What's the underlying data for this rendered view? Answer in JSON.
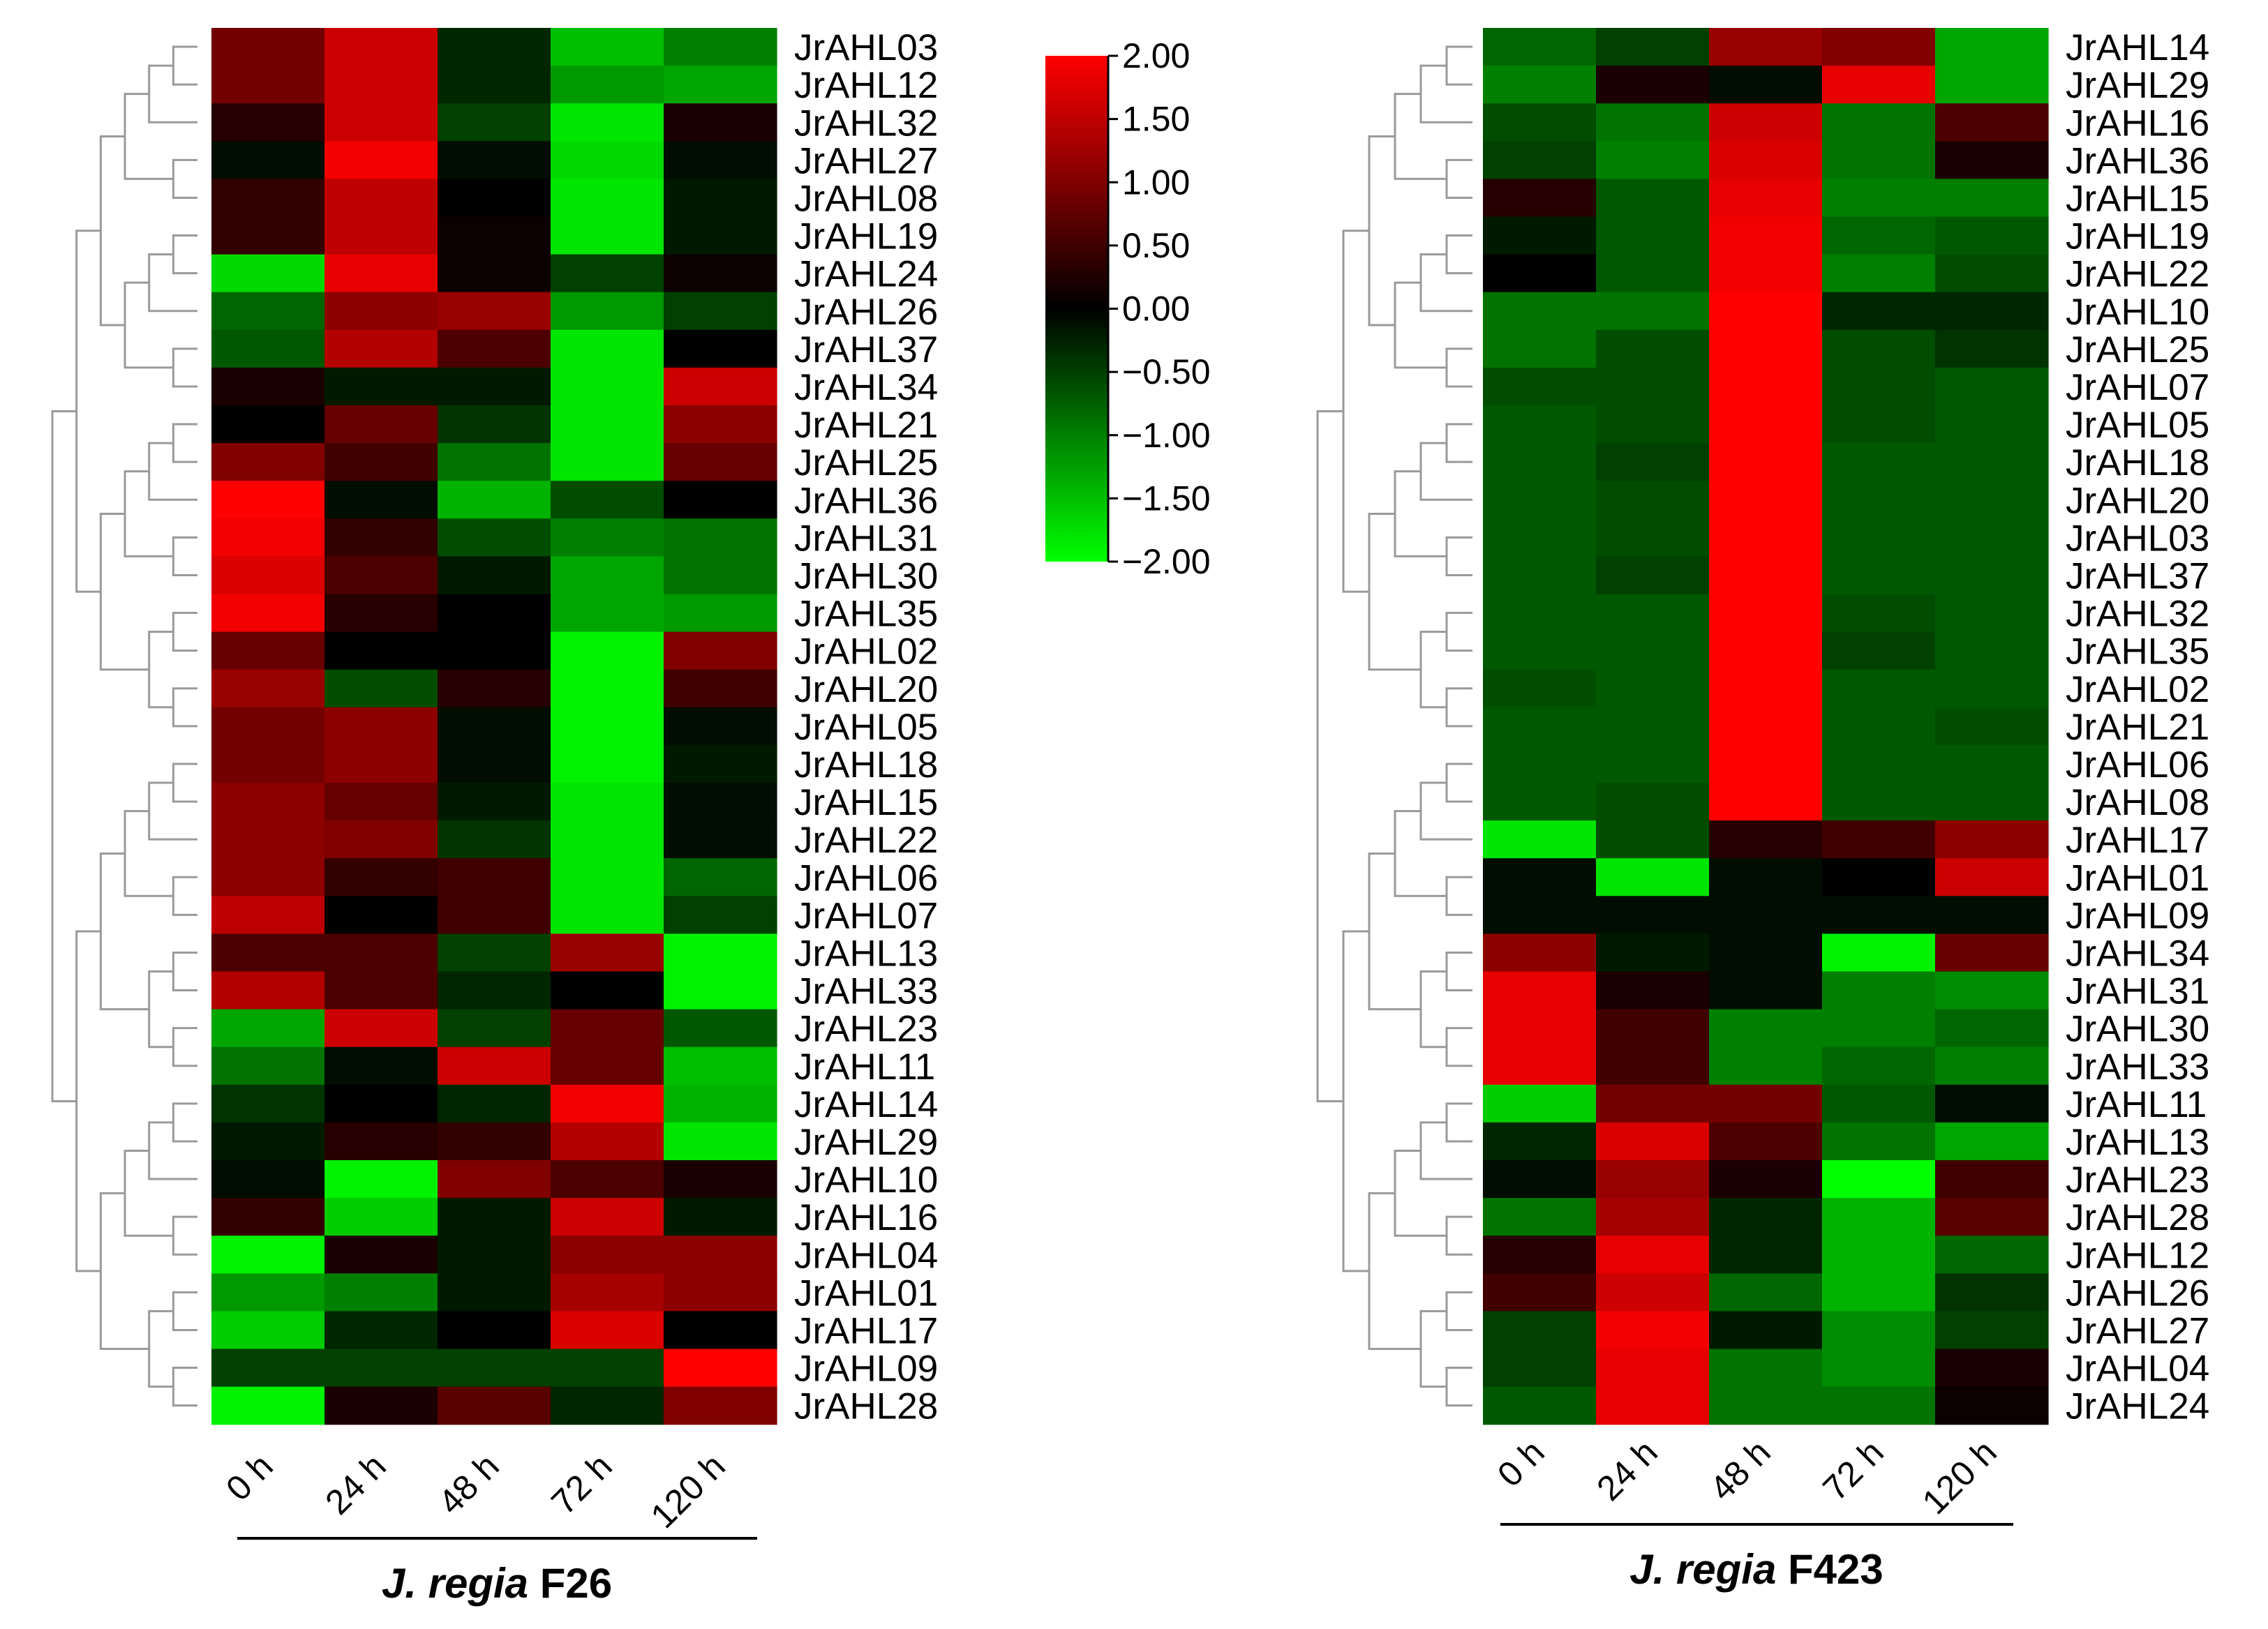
{
  "chart_data": [
    {
      "type": "heatmap",
      "title_italic": "J. regia",
      "title_rest": " F26",
      "columns": [
        "0 h",
        "24 h",
        "48 h",
        "72 h",
        "120 h"
      ],
      "rows": [
        "JrAHL03",
        "JrAHL12",
        "JrAHL32",
        "JrAHL27",
        "JrAHL08",
        "JrAHL19",
        "JrAHL24",
        "JrAHL26",
        "JrAHL37",
        "JrAHL34",
        "JrAHL21",
        "JrAHL25",
        "JrAHL36",
        "JrAHL31",
        "JrAHL30",
        "JrAHL35",
        "JrAHL02",
        "JrAHL20",
        "JrAHL05",
        "JrAHL18",
        "JrAHL15",
        "JrAHL22",
        "JrAHL06",
        "JrAHL07",
        "JrAHL13",
        "JrAHL33",
        "JrAHL23",
        "JrAHL11",
        "JrAHL14",
        "JrAHL29",
        "JrAHL10",
        "JrAHL16",
        "JrAHL04",
        "JrAHL01",
        "JrAHL17",
        "JrAHL09",
        "JrAHL28"
      ],
      "values": [
        [
          0.9,
          1.6,
          -0.3,
          -1.5,
          -1.0
        ],
        [
          0.9,
          1.6,
          -0.3,
          -1.2,
          -1.3
        ],
        [
          0.3,
          1.6,
          -0.5,
          -1.8,
          0.2
        ],
        [
          -0.1,
          1.9,
          -0.1,
          -1.7,
          -0.1
        ],
        [
          0.4,
          1.5,
          0.0,
          -1.8,
          -0.2
        ],
        [
          0.4,
          1.5,
          0.1,
          -1.8,
          -0.2
        ],
        [
          -1.7,
          1.8,
          0.1,
          -0.5,
          0.1
        ],
        [
          -0.8,
          1.1,
          1.2,
          -1.2,
          -0.5
        ],
        [
          -0.7,
          1.4,
          0.6,
          -1.8,
          0.0
        ],
        [
          0.2,
          -0.2,
          -0.2,
          -1.8,
          1.6
        ],
        [
          0.0,
          0.8,
          -0.4,
          -1.8,
          1.1
        ],
        [
          1.0,
          0.5,
          -0.9,
          -1.8,
          0.8
        ],
        [
          2.0,
          -0.1,
          -1.4,
          -0.6,
          0.0
        ],
        [
          1.9,
          0.4,
          -0.6,
          -1.0,
          -0.9
        ],
        [
          1.7,
          0.6,
          -0.2,
          -1.3,
          -0.9
        ],
        [
          1.9,
          0.3,
          0.0,
          -1.3,
          -1.2
        ],
        [
          0.8,
          0.0,
          0.0,
          -1.9,
          1.0
        ],
        [
          1.2,
          -0.6,
          0.3,
          -1.9,
          0.5
        ],
        [
          0.9,
          1.1,
          -0.1,
          -1.9,
          -0.1
        ],
        [
          0.9,
          1.1,
          -0.1,
          -1.9,
          -0.2
        ],
        [
          1.1,
          0.8,
          -0.2,
          -1.8,
          -0.1
        ],
        [
          1.1,
          1.0,
          -0.4,
          -1.8,
          -0.1
        ],
        [
          1.1,
          0.4,
          0.5,
          -1.8,
          -0.8
        ],
        [
          1.5,
          0.0,
          0.5,
          -1.8,
          -0.5
        ],
        [
          0.6,
          0.6,
          -0.5,
          1.2,
          -1.9
        ],
        [
          1.4,
          0.6,
          -0.3,
          0.0,
          -1.9
        ],
        [
          -1.3,
          1.6,
          -0.5,
          0.8,
          -0.7
        ],
        [
          -0.9,
          -0.1,
          1.6,
          0.8,
          -1.5
        ],
        [
          -0.4,
          0.0,
          -0.3,
          1.9,
          -1.4
        ],
        [
          -0.2,
          0.3,
          0.4,
          1.4,
          -1.8
        ],
        [
          -0.1,
          -1.9,
          1.0,
          0.6,
          0.2
        ],
        [
          0.4,
          -1.6,
          -0.2,
          1.6,
          -0.2
        ],
        [
          -1.9,
          0.2,
          -0.2,
          1.1,
          1.1
        ],
        [
          -1.2,
          -1.0,
          -0.2,
          1.3,
          1.1
        ],
        [
          -1.6,
          -0.3,
          0.0,
          1.7,
          0.0
        ],
        [
          -0.5,
          -0.5,
          -0.5,
          -0.5,
          2.0
        ],
        [
          -1.9,
          0.2,
          0.7,
          -0.3,
          1.0
        ]
      ]
    },
    {
      "type": "heatmap",
      "title_italic": "J. regia",
      "title_rest": " F423",
      "columns": [
        "0 h",
        "24 h",
        "48 h",
        "72 h",
        "120 h"
      ],
      "rows": [
        "JrAHL14",
        "JrAHL29",
        "JrAHL16",
        "JrAHL36",
        "JrAHL15",
        "JrAHL19",
        "JrAHL22",
        "JrAHL10",
        "JrAHL25",
        "JrAHL07",
        "JrAHL05",
        "JrAHL18",
        "JrAHL20",
        "JrAHL03",
        "JrAHL37",
        "JrAHL32",
        "JrAHL35",
        "JrAHL02",
        "JrAHL21",
        "JrAHL06",
        "JrAHL08",
        "JrAHL17",
        "JrAHL01",
        "JrAHL09",
        "JrAHL34",
        "JrAHL31",
        "JrAHL30",
        "JrAHL33",
        "JrAHL11",
        "JrAHL13",
        "JrAHL23",
        "JrAHL28",
        "JrAHL12",
        "JrAHL26",
        "JrAHL27",
        "JrAHL04",
        "JrAHL24"
      ],
      "values": [
        [
          -0.8,
          -0.5,
          1.2,
          1.0,
          -1.3
        ],
        [
          -1.0,
          0.2,
          -0.1,
          1.8,
          -1.3
        ],
        [
          -0.6,
          -0.9,
          1.6,
          -0.9,
          0.6
        ],
        [
          -0.5,
          -1.0,
          1.7,
          -0.9,
          0.2
        ],
        [
          0.3,
          -0.7,
          1.8,
          -1.0,
          -1.0
        ],
        [
          -0.2,
          -0.7,
          1.9,
          -0.8,
          -0.7
        ],
        [
          0.0,
          -0.7,
          1.9,
          -1.0,
          -0.6
        ],
        [
          -0.9,
          -0.9,
          2.0,
          -0.3,
          -0.3
        ],
        [
          -0.9,
          -0.6,
          2.0,
          -0.6,
          -0.4
        ],
        [
          -0.6,
          -0.6,
          2.0,
          -0.6,
          -0.7
        ],
        [
          -0.7,
          -0.6,
          2.0,
          -0.6,
          -0.7
        ],
        [
          -0.7,
          -0.5,
          2.0,
          -0.7,
          -0.7
        ],
        [
          -0.7,
          -0.6,
          2.0,
          -0.7,
          -0.7
        ],
        [
          -0.7,
          -0.6,
          2.0,
          -0.7,
          -0.7
        ],
        [
          -0.7,
          -0.5,
          2.0,
          -0.7,
          -0.7
        ],
        [
          -0.7,
          -0.7,
          2.0,
          -0.6,
          -0.7
        ],
        [
          -0.7,
          -0.7,
          2.0,
          -0.5,
          -0.7
        ],
        [
          -0.6,
          -0.7,
          2.0,
          -0.7,
          -0.7
        ],
        [
          -0.7,
          -0.7,
          2.0,
          -0.7,
          -0.6
        ],
        [
          -0.7,
          -0.7,
          2.0,
          -0.7,
          -0.7
        ],
        [
          -0.7,
          -0.6,
          2.0,
          -0.7,
          -0.7
        ],
        [
          -1.8,
          -0.6,
          0.3,
          0.5,
          1.1
        ],
        [
          -0.1,
          -1.8,
          -0.1,
          0.0,
          1.6
        ],
        [
          -0.1,
          -0.1,
          -0.1,
          -0.1,
          -0.1
        ],
        [
          1.1,
          -0.2,
          -0.1,
          -1.9,
          0.8
        ],
        [
          1.8,
          0.2,
          -0.1,
          -1.0,
          -1.1
        ],
        [
          1.8,
          0.5,
          -1.0,
          -1.0,
          -0.8
        ],
        [
          1.8,
          0.5,
          -1.0,
          -0.8,
          -1.0
        ],
        [
          -1.6,
          0.9,
          0.9,
          -0.7,
          -0.1
        ],
        [
          -0.3,
          1.7,
          0.6,
          -0.9,
          -1.3
        ],
        [
          -0.1,
          1.2,
          0.2,
          -2.0,
          0.5
        ],
        [
          -0.9,
          1.3,
          -0.3,
          -1.4,
          0.7
        ],
        [
          0.3,
          1.8,
          -0.3,
          -1.4,
          -0.8
        ],
        [
          0.5,
          1.6,
          -0.8,
          -1.4,
          -0.4
        ],
        [
          -0.5,
          1.9,
          -0.2,
          -1.1,
          -0.5
        ],
        [
          -0.5,
          1.8,
          -0.9,
          -1.1,
          0.2
        ],
        [
          -0.7,
          1.8,
          -0.9,
          -0.9,
          0.1
        ]
      ]
    }
  ],
  "legend": {
    "ticks": [
      "2.00",
      "1.50",
      "1.00",
      "0.50",
      "0.00",
      "−0.50",
      "−1.00",
      "−1.50",
      "−2.00"
    ],
    "max": 2.0,
    "min": -2.0,
    "colors": {
      "high": "#ff0000",
      "mid": "#000000",
      "low": "#00ff00"
    }
  },
  "colors": {
    "dendrogram": "#9a9a9a"
  }
}
